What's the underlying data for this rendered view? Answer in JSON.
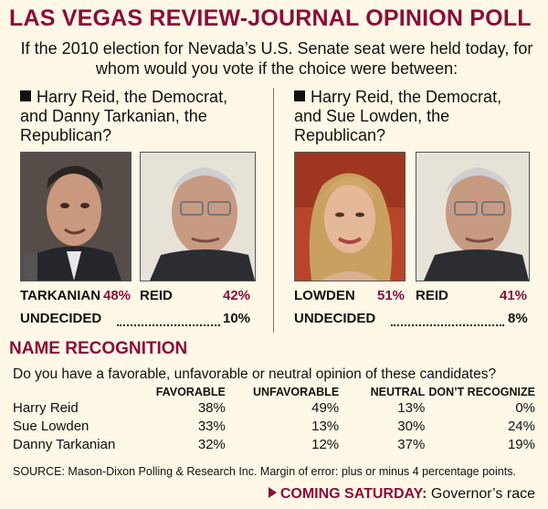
{
  "title": "LAS VEGAS REVIEW-JOURNAL OPINION POLL",
  "question": "If the 2010 election for Nevada’s U.S. Senate seat were held today, for whom would you vote if the choice were between:",
  "matchups": [
    {
      "prompt": "Harry Reid, the Democrat, and Danny Tarkanian, the Republican?",
      "candidate_a": {
        "name": "TARKANIAN",
        "pct": "48%"
      },
      "candidate_b": {
        "name": "REID",
        "pct": "42%"
      },
      "undecided_label": "UNDECIDED",
      "undecided_pct": "10%"
    },
    {
      "prompt": "Harry Reid, the Democrat, and Sue Lowden, the Republican?",
      "candidate_a": {
        "name": "LOWDEN",
        "pct": "51%"
      },
      "candidate_b": {
        "name": "REID",
        "pct": "41%"
      },
      "undecided_label": "UNDECIDED",
      "undecided_pct": "8%"
    }
  ],
  "recognition": {
    "heading": "NAME RECOGNITION",
    "question": "Do you have a favorable, unfavorable or neutral opinion of these candidates?",
    "columns": [
      "FAVORABLE",
      "UNFAVORABLE",
      "NEUTRAL",
      "DON’T RECOGNIZE"
    ],
    "rows": [
      {
        "name": "Harry Reid",
        "values": [
          "38%",
          "49%",
          "13%",
          "0%"
        ]
      },
      {
        "name": "Sue Lowden",
        "values": [
          "33%",
          "13%",
          "30%",
          "24%"
        ]
      },
      {
        "name": "Danny Tarkanian",
        "values": [
          "32%",
          "12%",
          "37%",
          "19%"
        ]
      }
    ]
  },
  "source": "SOURCE: Mason-Dixon Polling & Research Inc. Margin of error: plus or minus 4 percentage points.",
  "coming": {
    "label": "COMING SATURDAY:",
    "text": "Governor’s race"
  },
  "chart_data": {
    "type": "table",
    "title": "LAS VEGAS REVIEW-JOURNAL OPINION POLL",
    "matchups": [
      {
        "categories": [
          "TARKANIAN",
          "REID",
          "UNDECIDED"
        ],
        "values": [
          48,
          42,
          10
        ]
      },
      {
        "categories": [
          "LOWDEN",
          "REID",
          "UNDECIDED"
        ],
        "values": [
          51,
          41,
          8
        ]
      }
    ],
    "name_recognition": {
      "columns": [
        "FAVORABLE",
        "UNFAVORABLE",
        "NEUTRAL",
        "DON’T RECOGNIZE"
      ],
      "rows": [
        "Harry Reid",
        "Sue Lowden",
        "Danny Tarkanian"
      ],
      "values": [
        [
          38,
          49,
          13,
          0
        ],
        [
          33,
          13,
          30,
          24
        ],
        [
          32,
          12,
          37,
          19
        ]
      ]
    }
  },
  "colors": {
    "accent": "#8b0d3a",
    "background": "#fff8e6"
  }
}
